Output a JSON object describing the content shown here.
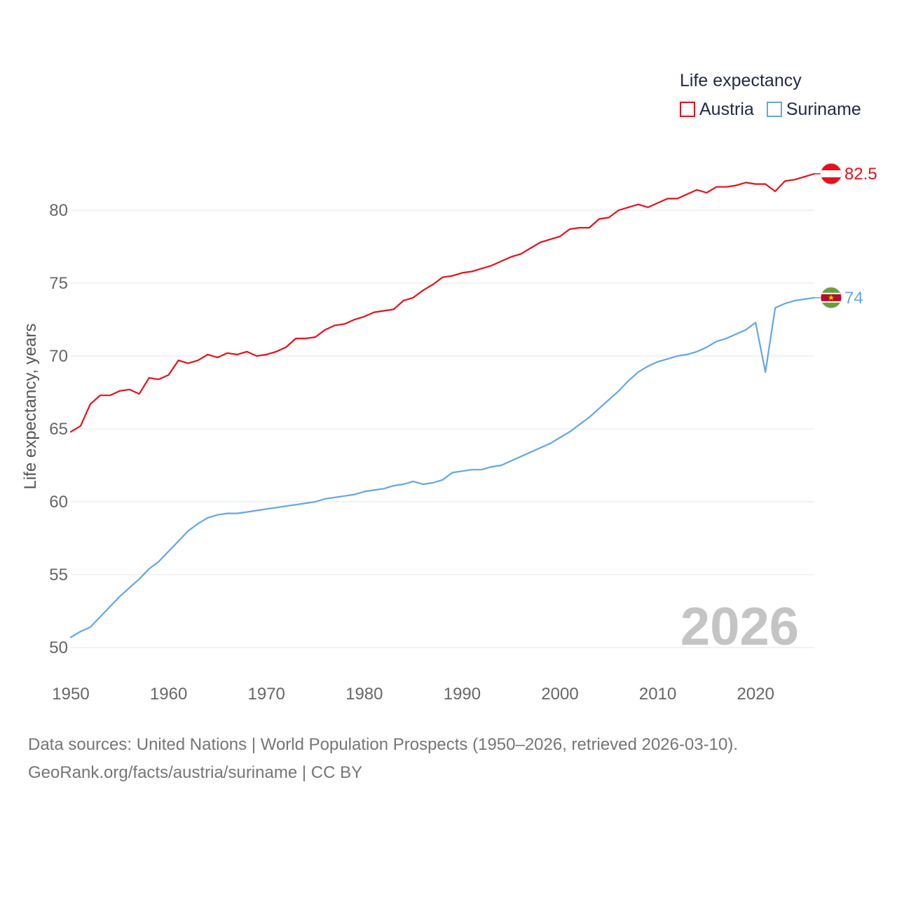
{
  "chart_data": {
    "type": "line",
    "title": "Life expectancy",
    "xlabel": "",
    "ylabel": "Life expectancy, years",
    "xlim": [
      1950,
      2026
    ],
    "ylim": [
      50,
      83
    ],
    "yticks": [
      50,
      55,
      60,
      65,
      70,
      75,
      80
    ],
    "xticks": [
      1950,
      1960,
      1970,
      1980,
      1990,
      2000,
      2010,
      2020
    ],
    "year_label": "2026",
    "x": [
      1950,
      1951,
      1952,
      1953,
      1954,
      1955,
      1956,
      1957,
      1958,
      1959,
      1960,
      1961,
      1962,
      1963,
      1964,
      1965,
      1966,
      1967,
      1968,
      1969,
      1970,
      1971,
      1972,
      1973,
      1974,
      1975,
      1976,
      1977,
      1978,
      1979,
      1980,
      1981,
      1982,
      1983,
      1984,
      1985,
      1986,
      1987,
      1988,
      1989,
      1990,
      1991,
      1992,
      1993,
      1994,
      1995,
      1996,
      1997,
      1998,
      1999,
      2000,
      2001,
      2002,
      2003,
      2004,
      2005,
      2006,
      2007,
      2008,
      2009,
      2010,
      2011,
      2012,
      2013,
      2014,
      2015,
      2016,
      2017,
      2018,
      2019,
      2020,
      2021,
      2022,
      2023,
      2024,
      2025,
      2026
    ],
    "series": [
      {
        "name": "Austria",
        "color": "#e8101a",
        "end_label": "82.5",
        "values": [
          64.8,
          65.2,
          66.7,
          67.3,
          67.3,
          67.6,
          67.7,
          67.4,
          68.5,
          68.4,
          68.7,
          69.7,
          69.5,
          69.7,
          70.1,
          69.9,
          70.2,
          70.1,
          70.3,
          70.0,
          70.1,
          70.3,
          70.6,
          71.2,
          71.2,
          71.3,
          71.8,
          72.1,
          72.2,
          72.5,
          72.7,
          73.0,
          73.1,
          73.2,
          73.8,
          74.0,
          74.5,
          74.9,
          75.4,
          75.5,
          75.7,
          75.8,
          76.0,
          76.2,
          76.5,
          76.8,
          77.0,
          77.4,
          77.8,
          78.0,
          78.2,
          78.7,
          78.8,
          78.8,
          79.4,
          79.5,
          80.0,
          80.2,
          80.4,
          80.2,
          80.5,
          80.8,
          80.8,
          81.1,
          81.4,
          81.2,
          81.6,
          81.6,
          81.7,
          81.9,
          81.8,
          81.8,
          81.3,
          82.0,
          82.1,
          82.3,
          82.5
        ]
      },
      {
        "name": "Suriname",
        "color": "#64a6e6",
        "end_label": "74",
        "values": [
          50.7,
          51.1,
          51.4,
          52.1,
          52.8,
          53.5,
          54.1,
          54.7,
          55.4,
          55.9,
          56.6,
          57.3,
          58.0,
          58.5,
          58.9,
          59.1,
          59.2,
          59.2,
          59.3,
          59.4,
          59.5,
          59.6,
          59.7,
          59.8,
          59.9,
          60.0,
          60.2,
          60.3,
          60.4,
          60.5,
          60.7,
          60.8,
          60.9,
          61.1,
          61.2,
          61.4,
          61.2,
          61.3,
          61.5,
          62.0,
          62.1,
          62.2,
          62.2,
          62.4,
          62.5,
          62.8,
          63.1,
          63.4,
          63.7,
          64.0,
          64.4,
          64.8,
          65.3,
          65.8,
          66.4,
          67.0,
          67.6,
          68.3,
          68.9,
          69.3,
          69.6,
          69.8,
          70.0,
          70.1,
          70.3,
          70.6,
          71.0,
          71.2,
          71.5,
          71.8,
          72.3,
          68.9,
          73.3,
          73.6,
          73.8,
          73.9,
          74.0
        ]
      }
    ]
  },
  "legend": {
    "title": "Life expectancy",
    "items": [
      "Austria",
      "Suriname"
    ]
  },
  "footer": {
    "line1": "Data sources: United Nations | World Population Prospects (1950–2026, retrieved 2026-03-10).",
    "line2": "GeoRank.org/facts/austria/suriname | CC BY"
  }
}
